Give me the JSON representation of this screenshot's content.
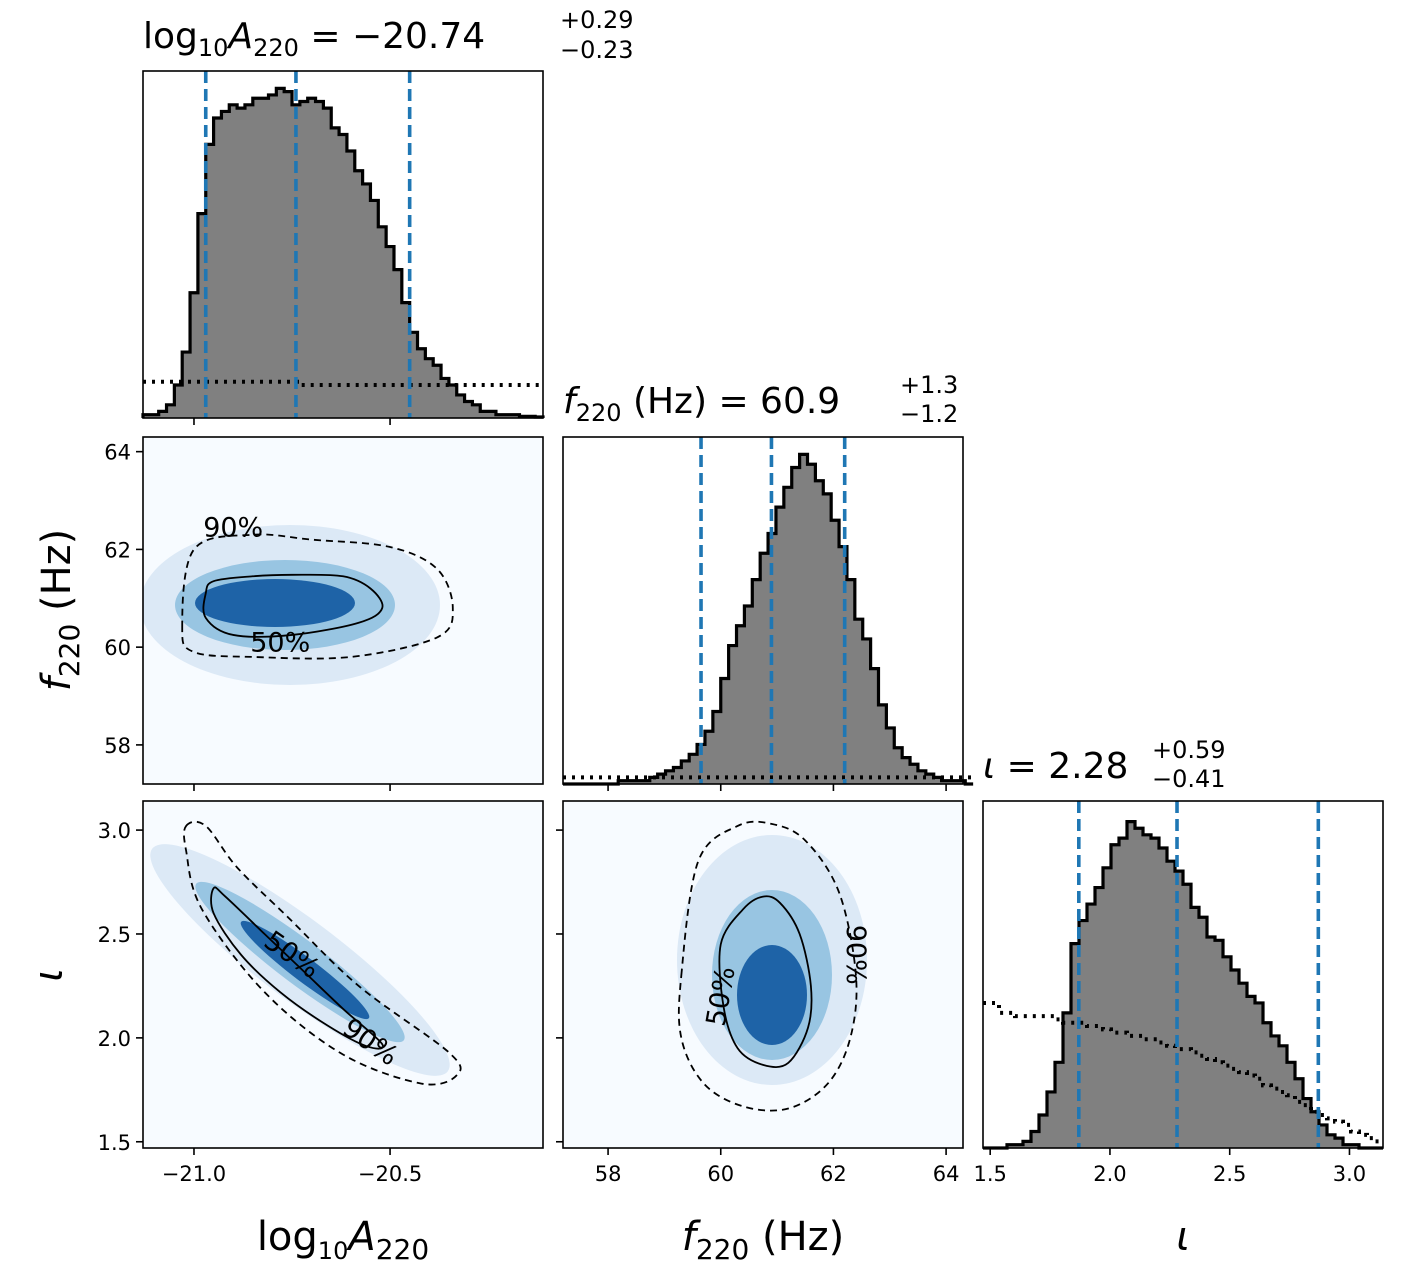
{
  "colors": {
    "hist_fill": "#808080",
    "hist_edge": "#000000",
    "quantile_line": "#1f77b4",
    "density_low": "#f7fbff",
    "density_high": "#08519c"
  },
  "chart_data": {
    "type": "corner",
    "parameters": [
      "log10A220",
      "f220",
      "iota"
    ],
    "grid": false,
    "titles": {
      "log10A220": {
        "prefix": "log",
        "sub1": "10",
        "sym": "A",
        "sub2": "220",
        "eq": " = −20.74",
        "plus": "+0.29",
        "minus": "−0.23"
      },
      "f220": {
        "prefix": "",
        "sub1": "",
        "sym": "f",
        "sub2": "220",
        "eq": " (Hz) = 60.9",
        "plus": "+1.3",
        "minus": "−1.2"
      },
      "iota": {
        "prefix": "",
        "sub1": "",
        "sym": "ι",
        "sub2": "",
        "eq": " = 2.28",
        "plus": "+0.59",
        "minus": "−0.41"
      }
    },
    "axis_labels": {
      "x": {
        "log10A220": {
          "prefix": "log",
          "sub1": "10",
          "sym": "A",
          "sub2": "220",
          "suffix": ""
        },
        "f220": {
          "prefix": "",
          "sub1": "",
          "sym": "f",
          "sub2": "220",
          "suffix": " (Hz)"
        },
        "iota": {
          "prefix": "",
          "sub1": "",
          "sym": "ι",
          "sub2": "",
          "suffix": ""
        }
      },
      "y": {
        "f220": {
          "prefix": "",
          "sub1": "",
          "sym": "f",
          "sub2": "220",
          "suffix": " (Hz)"
        },
        "iota": {
          "prefix": "",
          "sub1": "",
          "sym": "ι",
          "sub2": "",
          "suffix": ""
        }
      }
    },
    "ranges": {
      "log10A220": [
        -21.13,
        -20.11
      ],
      "f220": [
        57.2,
        64.3
      ],
      "iota": [
        1.47,
        3.14
      ]
    },
    "ticks": {
      "log10A220": {
        "values": [
          -21.0,
          -20.5
        ],
        "labels": [
          "−21.0",
          "−20.5"
        ]
      },
      "f220": {
        "values": [
          58,
          60,
          62,
          64
        ],
        "labels": [
          "58",
          "60",
          "62",
          "64"
        ]
      },
      "iota": {
        "values": [
          1.5,
          2.0,
          2.5,
          3.0
        ],
        "labels": [
          "1.5",
          "2.0",
          "2.5",
          "3.0"
        ]
      }
    },
    "quantiles": {
      "log10A220": [
        -20.97,
        -20.74,
        -20.45
      ],
      "f220": [
        59.65,
        60.9,
        62.2
      ],
      "iota": [
        1.87,
        2.28,
        2.87
      ]
    },
    "histograms": {
      "log10A220": {
        "edges_start": -21.13,
        "bin_width": 0.02,
        "posterior": [
          0.01,
          0.01,
          0.02,
          0.04,
          0.1,
          0.2,
          0.38,
          0.62,
          0.83,
          0.91,
          0.93,
          0.95,
          0.94,
          0.95,
          0.97,
          0.97,
          0.98,
          1.0,
          0.99,
          0.95,
          0.96,
          0.97,
          0.96,
          0.94,
          0.88,
          0.86,
          0.81,
          0.75,
          0.71,
          0.66,
          0.58,
          0.52,
          0.45,
          0.35,
          0.26,
          0.21,
          0.18,
          0.16,
          0.12,
          0.1,
          0.07,
          0.05,
          0.04,
          0.02,
          0.02,
          0.01,
          0.01,
          0.01,
          0.005,
          0.005,
          0.003
        ],
        "prior": [
          0.11,
          0.11,
          0.11,
          0.11,
          0.11,
          0.11,
          0.11,
          0.11,
          0.11,
          0.11,
          0.11,
          0.11,
          0.11,
          0.11,
          0.11,
          0.11,
          0.11,
          0.11,
          0.11,
          0.11,
          0.1,
          0.1,
          0.1,
          0.1,
          0.1,
          0.1,
          0.1,
          0.1,
          0.1,
          0.1,
          0.1,
          0.1,
          0.1,
          0.1,
          0.1,
          0.1,
          0.1,
          0.1,
          0.1,
          0.1,
          0.1,
          0.1,
          0.1,
          0.1,
          0.1,
          0.1,
          0.1,
          0.1,
          0.1,
          0.1,
          0.1
        ]
      },
      "f220": {
        "edges_start": 57.2,
        "bin_width": 0.14,
        "posterior": [
          0.0,
          0.0,
          0.0,
          0.0,
          0.0,
          0.0,
          0.0,
          0.01,
          0.01,
          0.01,
          0.01,
          0.02,
          0.03,
          0.04,
          0.05,
          0.07,
          0.09,
          0.12,
          0.16,
          0.22,
          0.32,
          0.42,
          0.48,
          0.54,
          0.62,
          0.7,
          0.76,
          0.84,
          0.9,
          0.96,
          1.0,
          0.97,
          0.92,
          0.88,
          0.8,
          0.72,
          0.62,
          0.5,
          0.44,
          0.35,
          0.24,
          0.17,
          0.11,
          0.08,
          0.06,
          0.04,
          0.03,
          0.02,
          0.01,
          0.01,
          0.01,
          0.0
        ],
        "prior": [
          0.02,
          0.02,
          0.02,
          0.02,
          0.02,
          0.02,
          0.02,
          0.02,
          0.02,
          0.02,
          0.02,
          0.02,
          0.02,
          0.02,
          0.02,
          0.02,
          0.02,
          0.02,
          0.02,
          0.02,
          0.02,
          0.02,
          0.02,
          0.02,
          0.02,
          0.02,
          0.02,
          0.02,
          0.02,
          0.02,
          0.02,
          0.02,
          0.02,
          0.02,
          0.02,
          0.02,
          0.02,
          0.02,
          0.02,
          0.02,
          0.02,
          0.02,
          0.02,
          0.02,
          0.02,
          0.02,
          0.02,
          0.02,
          0.02,
          0.02,
          0.02,
          0.02
        ]
      },
      "iota": {
        "edges_start": 1.47,
        "bin_width": 0.0334,
        "posterior": [
          0.0,
          0.0,
          0.0,
          0.01,
          0.01,
          0.02,
          0.05,
          0.1,
          0.17,
          0.26,
          0.41,
          0.62,
          0.69,
          0.74,
          0.79,
          0.85,
          0.92,
          0.94,
          0.99,
          0.97,
          0.95,
          0.94,
          0.91,
          0.87,
          0.84,
          0.8,
          0.73,
          0.7,
          0.64,
          0.63,
          0.58,
          0.54,
          0.5,
          0.46,
          0.44,
          0.38,
          0.34,
          0.31,
          0.26,
          0.21,
          0.15,
          0.11,
          0.07,
          0.04,
          0.03,
          0.01,
          0.01,
          0.0,
          0.0,
          0.0
        ],
        "prior": [
          0.44,
          0.44,
          0.41,
          0.41,
          0.4,
          0.4,
          0.4,
          0.4,
          0.4,
          0.39,
          0.38,
          0.38,
          0.38,
          0.37,
          0.37,
          0.36,
          0.35,
          0.35,
          0.34,
          0.34,
          0.33,
          0.33,
          0.32,
          0.31,
          0.3,
          0.3,
          0.29,
          0.28,
          0.27,
          0.26,
          0.25,
          0.24,
          0.23,
          0.22,
          0.21,
          0.19,
          0.18,
          0.17,
          0.16,
          0.14,
          0.13,
          0.11,
          0.1,
          0.09,
          0.08,
          0.07,
          0.05,
          0.04,
          0.03,
          0.02
        ]
      }
    },
    "density_2d": {
      "f220_vs_log10A220": {
        "x": "log10A220",
        "y": "f220",
        "peak": {
          "x": -20.8,
          "y": 60.85
        },
        "contour_levels": [
          "50%",
          "90%"
        ],
        "contour_50": [
          [
            -20.97,
            61.1
          ],
          [
            -20.95,
            61.35
          ],
          [
            -20.85,
            61.45
          ],
          [
            -20.75,
            61.48
          ],
          [
            -20.62,
            61.45
          ],
          [
            -20.55,
            61.2
          ],
          [
            -20.52,
            60.8
          ],
          [
            -20.58,
            60.5
          ],
          [
            -20.75,
            60.25
          ],
          [
            -20.9,
            60.25
          ],
          [
            -20.97,
            60.6
          ]
        ],
        "contour_90": [
          [
            -21.03,
            60.4
          ],
          [
            -21.0,
            62.0
          ],
          [
            -20.85,
            62.3
          ],
          [
            -20.7,
            62.2
          ],
          [
            -20.5,
            62.05
          ],
          [
            -20.38,
            61.6
          ],
          [
            -20.34,
            60.8
          ],
          [
            -20.38,
            60.2
          ],
          [
            -20.6,
            59.8
          ],
          [
            -20.85,
            59.8
          ],
          [
            -21.0,
            59.9
          ]
        ]
      },
      "iota_vs_log10A220": {
        "x": "log10A220",
        "y": "iota",
        "peak": {
          "x": -20.72,
          "y": 2.25
        },
        "contour_levels": [
          "50%",
          "90%"
        ],
        "contour_50": [
          [
            -20.95,
            2.72
          ],
          [
            -20.92,
            2.68
          ],
          [
            -20.82,
            2.5
          ],
          [
            -20.72,
            2.32
          ],
          [
            -20.62,
            2.14
          ],
          [
            -20.52,
            1.97
          ],
          [
            -20.56,
            1.96
          ],
          [
            -20.66,
            2.06
          ],
          [
            -20.78,
            2.22
          ],
          [
            -20.88,
            2.4
          ],
          [
            -20.95,
            2.6
          ]
        ],
        "contour_90": [
          [
            -21.02,
            3.02
          ],
          [
            -20.97,
            3.02
          ],
          [
            -20.89,
            2.82
          ],
          [
            -20.76,
            2.58
          ],
          [
            -20.58,
            2.25
          ],
          [
            -20.35,
            1.93
          ],
          [
            -20.33,
            1.82
          ],
          [
            -20.42,
            1.78
          ],
          [
            -20.62,
            1.92
          ],
          [
            -20.82,
            2.22
          ],
          [
            -20.98,
            2.62
          ],
          [
            -21.02,
            2.9
          ]
        ]
      },
      "iota_vs_f220": {
        "x": "f220",
        "y": "iota",
        "peak": {
          "x": 60.9,
          "y": 2.15
        },
        "contour_levels": [
          "50%",
          "90%"
        ],
        "contour_50": [
          [
            60.0,
            2.45
          ],
          [
            60.4,
            2.62
          ],
          [
            60.75,
            2.68
          ],
          [
            61.05,
            2.65
          ],
          [
            61.4,
            2.5
          ],
          [
            61.6,
            2.25
          ],
          [
            61.55,
            2.05
          ],
          [
            61.2,
            1.88
          ],
          [
            60.75,
            1.87
          ],
          [
            60.3,
            1.95
          ],
          [
            60.05,
            2.15
          ]
        ],
        "contour_90": [
          [
            59.3,
            2.3
          ],
          [
            59.6,
            2.85
          ],
          [
            60.3,
            3.02
          ],
          [
            60.9,
            3.03
          ],
          [
            61.5,
            2.95
          ],
          [
            62.1,
            2.7
          ],
          [
            62.4,
            2.3
          ],
          [
            62.3,
            2.0
          ],
          [
            61.9,
            1.78
          ],
          [
            61.2,
            1.66
          ],
          [
            60.4,
            1.67
          ],
          [
            59.7,
            1.78
          ],
          [
            59.3,
            2.0
          ]
        ]
      }
    }
  }
}
